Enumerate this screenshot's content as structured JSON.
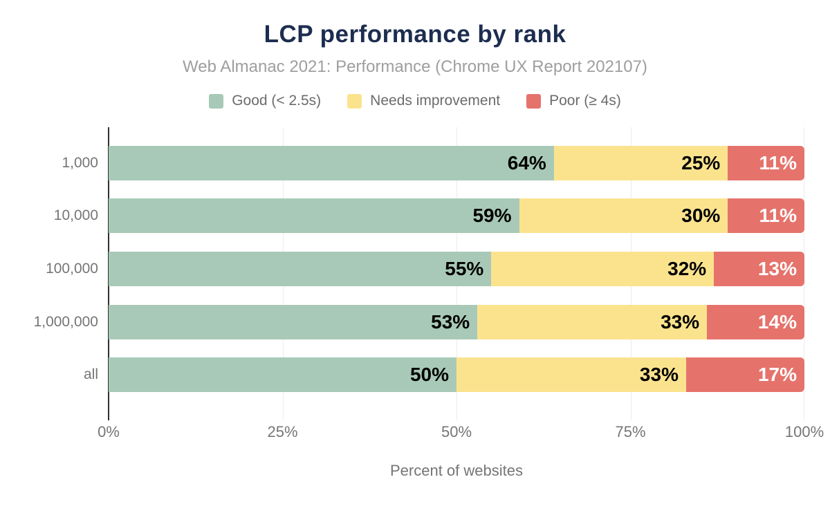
{
  "title": "LCP performance by rank",
  "subtitle": "Web Almanac 2021: Performance (Chrome UX Report 202107)",
  "chart_data": {
    "type": "bar",
    "orientation": "horizontal",
    "stacked": true,
    "title": "LCP performance by rank",
    "subtitle": "Web Almanac 2021: Performance (Chrome UX Report 202107)",
    "categories": [
      "1,000",
      "10,000",
      "100,000",
      "1,000,000",
      "all"
    ],
    "series": [
      {
        "name": "Good (< 2.5s)",
        "color": "#a8c9b7",
        "label_color": "#000000",
        "values": [
          64,
          59,
          55,
          53,
          50
        ]
      },
      {
        "name": "Needs improvement",
        "color": "#fbe38e",
        "label_color": "#000000",
        "values": [
          25,
          30,
          32,
          33,
          33
        ]
      },
      {
        "name": "Poor (≥ 4s)",
        "color": "#e5736c",
        "label_color": "#ffffff",
        "values": [
          11,
          11,
          13,
          14,
          17
        ]
      }
    ],
    "data_label_format": "{value}%",
    "xlabel": "Percent of websites",
    "ylabel": "",
    "x_ticks": [
      "0%",
      "25%",
      "50%",
      "75%",
      "100%"
    ],
    "xlim": [
      0,
      100
    ],
    "grid": true,
    "legend_position": "top"
  },
  "colors": {
    "title": "#1c2d4f",
    "subtitle": "#9e9e9e",
    "axis_text": "#757575",
    "gridline": "#ececec",
    "axis_line": "#2f2f2f",
    "background": "#ffffff"
  }
}
